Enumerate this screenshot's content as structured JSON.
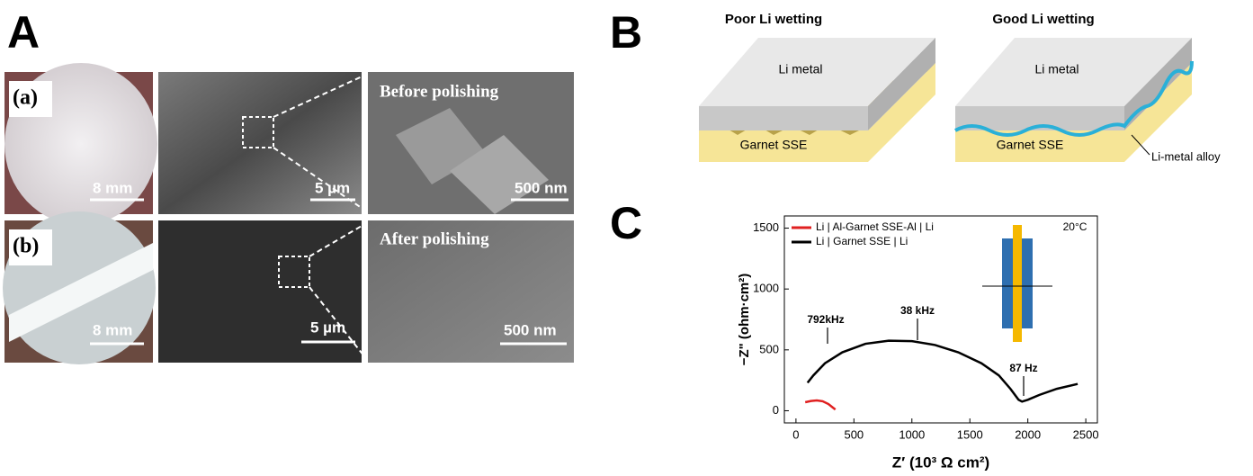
{
  "panel_a": {
    "label": "A",
    "rows": [
      {
        "label": "(a)",
        "photo_scale": "8 mm",
        "sem_scale": "5 µm",
        "zoom_scale": "500 nm",
        "zoom_caption": "Before polishing"
      },
      {
        "label": "(b)",
        "photo_scale": "8 mm",
        "sem_scale": "5 µm",
        "zoom_scale": "500 nm",
        "zoom_caption": "After polishing"
      }
    ]
  },
  "panel_b": {
    "label": "B",
    "left": {
      "title": "Poor Li wetting",
      "top": "Li metal",
      "bottom": "Garnet SSE"
    },
    "right": {
      "title": "Good Li wetting",
      "top": "Li metal",
      "bottom": "Garnet SSE",
      "callout": "Li-metal alloy"
    }
  },
  "chart_data": {
    "type": "line",
    "panel_label": "C",
    "xlabel": "Z′ (10³ Ω cm²)",
    "ylabel": "−Z\" (ohm·cm²)",
    "xlim": [
      -100,
      2600
    ],
    "xticks": [
      0,
      500,
      1000,
      1500,
      2000,
      2500
    ],
    "ylim": [
      -100,
      1600
    ],
    "yticks": [
      0,
      500,
      1000,
      1500
    ],
    "legend": "upper left",
    "annotations": [
      "792kHz",
      "38 kHz",
      "87 Hz",
      "20°C"
    ],
    "series": [
      {
        "name": "Li | Al-Garnet SSE-Al | Li",
        "color": "#e02020",
        "x": [
          80,
          130,
          180,
          230,
          280,
          320,
          340
        ],
        "values": [
          70,
          80,
          85,
          78,
          55,
          25,
          10
        ]
      },
      {
        "name": "Li | Garnet SSE | Li",
        "color": "#000000",
        "x": [
          100,
          150,
          250,
          400,
          600,
          800,
          1000,
          1200,
          1400,
          1600,
          1750,
          1850,
          1920,
          1950,
          2000,
          2100,
          2250,
          2430
        ],
        "values": [
          230,
          290,
          390,
          480,
          550,
          575,
          572,
          540,
          480,
          390,
          290,
          180,
          90,
          75,
          90,
          130,
          180,
          220
        ]
      }
    ]
  }
}
